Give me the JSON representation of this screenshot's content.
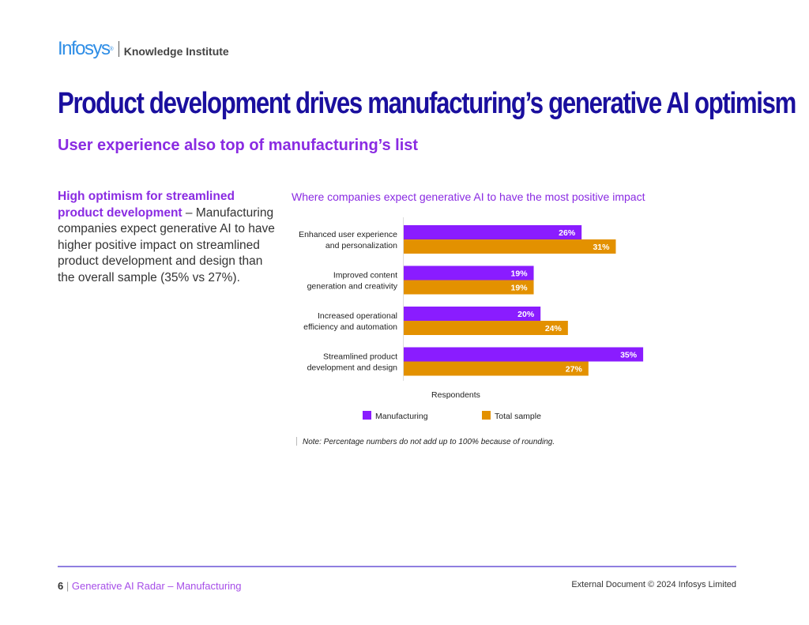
{
  "header": {
    "logo": "Infosys",
    "logo_sup": "®",
    "institute": "Knowledge Institute"
  },
  "title": "Product development drives manufacturing’s generative AI optimism",
  "subtitle": "User experience also top of manufacturing’s list",
  "lead": {
    "bold": "High optimism for streamlined product development",
    "text": " – Manufacturing companies expect generative AI to have higher positive impact on streamlined product development and design than the overall sample (35% vs 27%)."
  },
  "chart_data": {
    "type": "bar",
    "orientation": "horizontal",
    "title": "Where companies expect generative AI to have the most positive impact",
    "xlabel": "Respondents",
    "categories": [
      [
        "Enhanced user experience",
        "and personalization"
      ],
      [
        "Improved content",
        "generation and creativity"
      ],
      [
        "Increased operational",
        "efficiency and automation"
      ],
      [
        "Streamlined product",
        "development and design"
      ]
    ],
    "series": [
      {
        "name": "Manufacturing",
        "color": "#8a1cff",
        "values": [
          26,
          19,
          20,
          35
        ]
      },
      {
        "name": "Total sample",
        "color": "#e39100",
        "values": [
          31,
          19,
          24,
          27
        ]
      }
    ],
    "value_suffix": "%",
    "legend": "bottom",
    "note": "Note: Percentage numbers do not add up to 100% because of rounding."
  },
  "footer": {
    "page": "6",
    "doc": "Generative AI Radar – Manufacturing",
    "copyright": "External Document © 2024 Infosys Limited"
  }
}
